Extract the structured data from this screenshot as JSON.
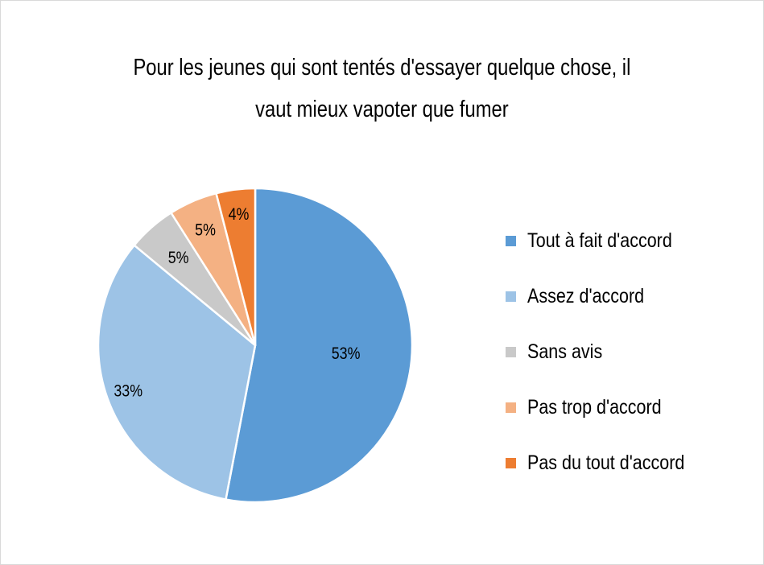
{
  "chart_data": {
    "type": "pie",
    "title": "Pour les jeunes qui sont tentés d'essayer quelque chose, il vaut mieux vapoter que fumer",
    "title_lines": [
      "Pour les jeunes qui sont tentés d'essayer quelque chose, il",
      "vaut mieux vapoter que fumer"
    ],
    "legend_position": "right",
    "slices": [
      {
        "label": "Tout à fait d'accord",
        "value": 53,
        "display": "53%",
        "color": "#5b9bd5"
      },
      {
        "label": "Assez d'accord",
        "value": 33,
        "display": "33%",
        "color": "#9dc3e6"
      },
      {
        "label": "Sans avis",
        "value": 5,
        "display": "5%",
        "color": "#c9c9c9"
      },
      {
        "label": "Pas trop d'accord",
        "value": 5,
        "display": "5%",
        "color": "#f4b183"
      },
      {
        "label": "Pas du tout d'accord",
        "value": 4,
        "display": "4%",
        "color": "#ed7d31"
      }
    ]
  }
}
